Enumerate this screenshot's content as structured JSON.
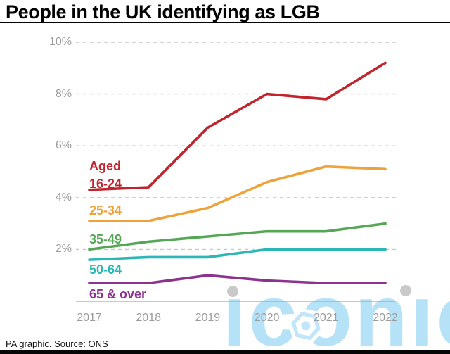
{
  "title": "People in the UK identifying as LGB",
  "source": "PA graphic. Source: ONS",
  "watermark": {
    "text": "iconic",
    "color": "#b6e2f8",
    "dot_color": "#c9c9c9"
  },
  "colors": {
    "red": "#c2242e",
    "orange": "#eea33a",
    "green": "#54a754",
    "teal": "#2cb6b6",
    "purple": "#8c3390",
    "gridline": "#c9c9c9",
    "axis": "#a8a8a8",
    "tick_text": "#9b9b9b"
  },
  "chart_data": {
    "type": "line",
    "title": "People in the UK identifying as LGB",
    "x": [
      2017,
      2018,
      2019,
      2020,
      2021,
      2022
    ],
    "xlabel": "",
    "ylabel": "",
    "unit": "%",
    "ylim": [
      0,
      10
    ],
    "ytick_labels": [
      "2%",
      "4%",
      "6%",
      "8%",
      "10%"
    ],
    "ytick_values": [
      2,
      4,
      6,
      8,
      10
    ],
    "grid": "dashed horizontal gridlines, solid baseline at 0",
    "legend_position": "inline labels at left of each line",
    "series": [
      {
        "name": "Aged 16-24",
        "legend_lines": [
          "Aged",
          "16-24"
        ],
        "color": "#c2242e",
        "values": [
          4.3,
          4.4,
          6.7,
          8.0,
          7.8,
          9.2
        ]
      },
      {
        "name": "25-34",
        "legend_lines": [
          "25-34"
        ],
        "color": "#eea33a",
        "values": [
          3.1,
          3.1,
          3.6,
          4.6,
          5.2,
          5.1
        ]
      },
      {
        "name": "35-49",
        "legend_lines": [
          "35-49"
        ],
        "color": "#54a754",
        "values": [
          2.0,
          2.3,
          2.5,
          2.7,
          2.7,
          3.0
        ]
      },
      {
        "name": "50-64",
        "legend_lines": [
          "50-64"
        ],
        "color": "#2cb6b6",
        "values": [
          1.6,
          1.7,
          1.7,
          2.0,
          2.0,
          2.0
        ]
      },
      {
        "name": "65 & over",
        "legend_lines": [
          "65 & over"
        ],
        "color": "#8c3390",
        "values": [
          0.7,
          0.7,
          1.0,
          0.8,
          0.7,
          0.7
        ]
      }
    ]
  }
}
